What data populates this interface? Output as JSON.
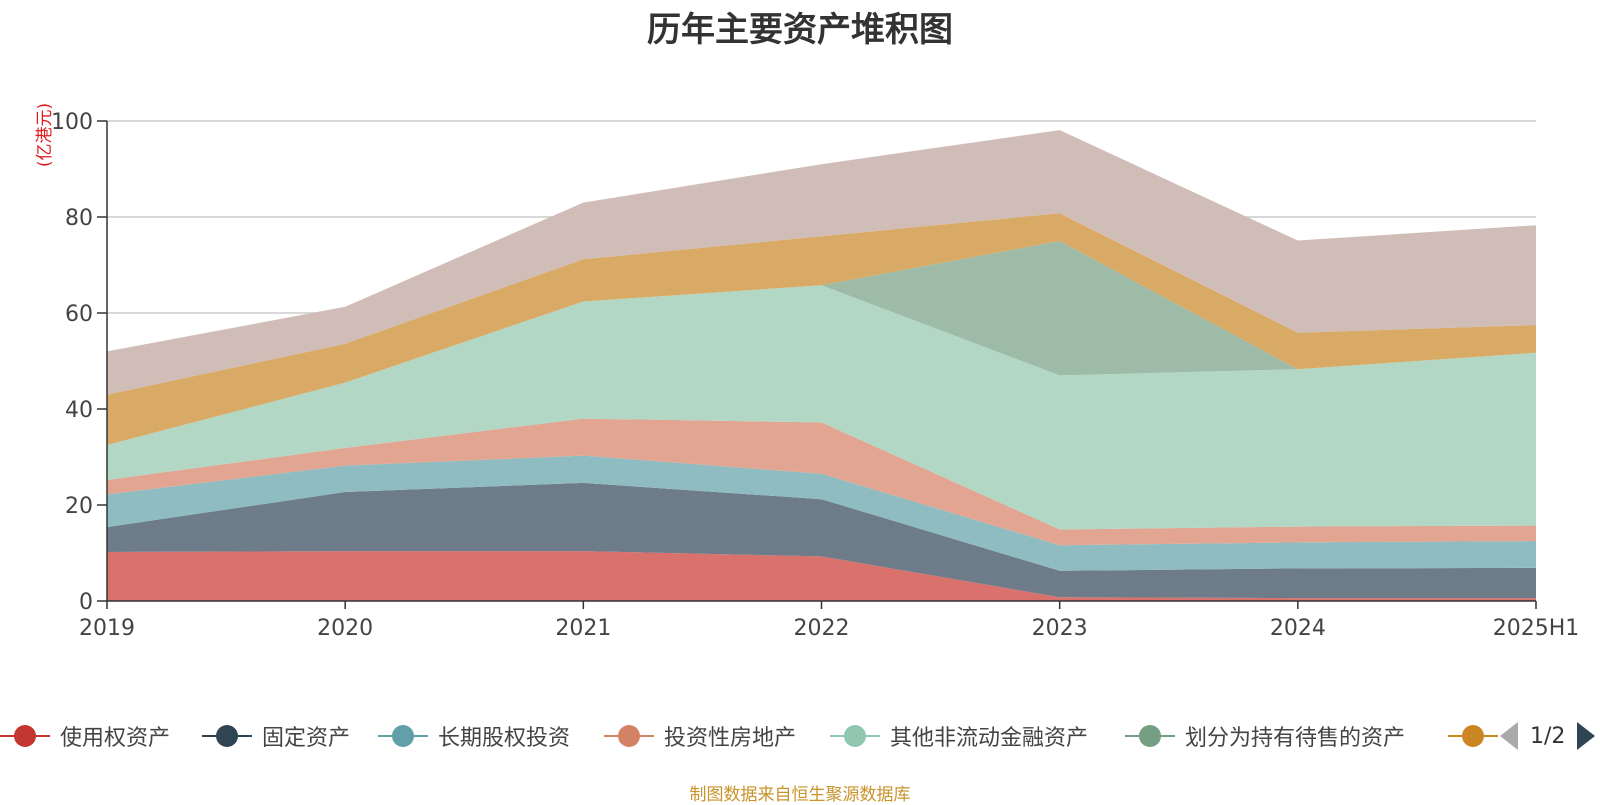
{
  "chart_data": {
    "type": "area",
    "stacked": true,
    "title": "历年主要资产堆积图",
    "unit_label": "(亿港元)",
    "categories": [
      "2019",
      "2020",
      "2021",
      "2022",
      "2023",
      "2024",
      "2025H1"
    ],
    "ylim": [
      0,
      100
    ],
    "yticks": [
      0,
      20,
      40,
      60,
      80,
      100
    ],
    "grid": true,
    "series": [
      {
        "name": "使用权资产",
        "color": "#d9716d",
        "legend_color": "#c23531",
        "values": [
          10.2,
          10.4,
          10.4,
          9.3,
          0.8,
          0.6,
          0.6
        ]
      },
      {
        "name": "固定资产",
        "color": "#6d7c88",
        "legend_color": "#2f4554",
        "values": [
          5.2,
          12.3,
          14.2,
          11.9,
          5.5,
          6.2,
          6.3
        ]
      },
      {
        "name": "长期股权投资",
        "color": "#8fbcc1",
        "legend_color": "#61a0a8",
        "values": [
          6.8,
          5.5,
          5.7,
          5.3,
          5.3,
          5.4,
          5.6
        ]
      },
      {
        "name": "投资性房地产",
        "color": "#e1a592",
        "legend_color": "#d48265",
        "values": [
          3.0,
          3.7,
          7.7,
          10.7,
          3.3,
          3.3,
          3.2
        ]
      },
      {
        "name": "其他非流动金融资产",
        "color": "#b2d7c5",
        "legend_color": "#91c7ae",
        "values": [
          7.3,
          13.6,
          24.4,
          28.6,
          32.1,
          32.8,
          36.0
        ]
      },
      {
        "name": "划分为持有待售的资产",
        "color": "#9dbba6",
        "legend_color": "#749f83",
        "values": [
          0,
          0,
          0,
          0,
          28.0,
          0,
          0
        ]
      },
      {
        "name": "",
        "color": "#d9aa66",
        "legend_color": "#ca8622",
        "values": [
          10.5,
          8.1,
          8.8,
          10.2,
          5.8,
          7.6,
          5.8
        ]
      },
      {
        "name": "",
        "color": "#d0bdb7",
        "legend_color": "#bda29a",
        "values": [
          9.0,
          7.7,
          11.8,
          15.0,
          17.3,
          19.2,
          20.8
        ]
      }
    ]
  },
  "legend": {
    "pager_text": "1/2"
  },
  "footer": {
    "source_note": "制图数据来自恒生聚源数据库"
  }
}
